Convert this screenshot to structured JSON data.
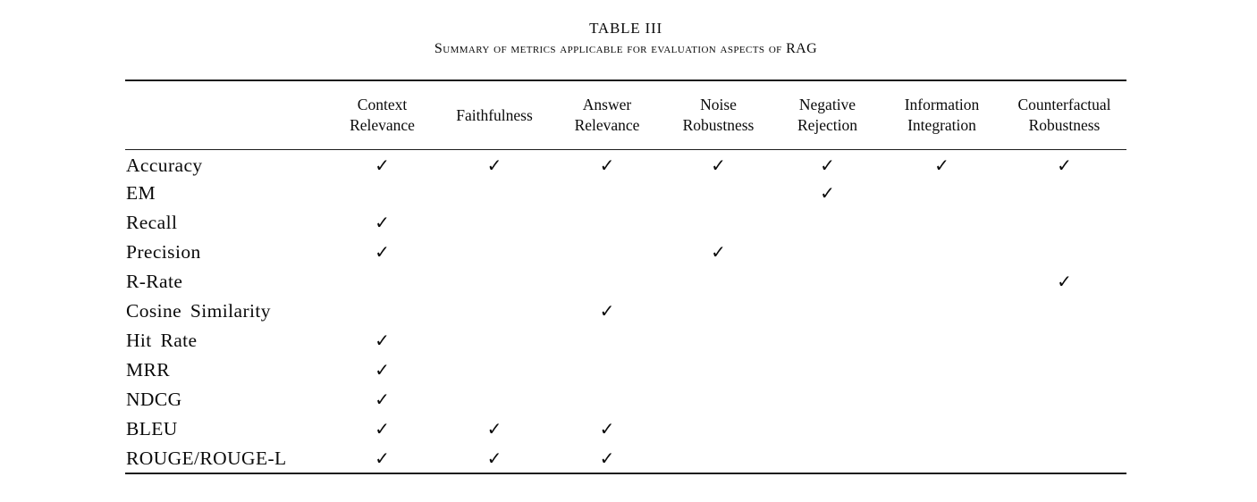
{
  "page": {
    "title": "TABLE III",
    "subtitle": "Summary of metrics applicable for evaluation aspects of RAG"
  },
  "table": {
    "check_glyph": "✓",
    "columns": [
      "Context Relevance",
      "Faithfulness",
      "Answer Relevance",
      "Noise Robustness",
      "Negative Rejection",
      "Information Integration",
      "Counterfactual Robustness"
    ],
    "rows": [
      {
        "label": "Accuracy",
        "checks": [
          1,
          1,
          1,
          1,
          1,
          1,
          1
        ]
      },
      {
        "label": "EM",
        "checks": [
          0,
          0,
          0,
          0,
          1,
          0,
          0
        ]
      },
      {
        "label": "Recall",
        "checks": [
          1,
          0,
          0,
          0,
          0,
          0,
          0
        ]
      },
      {
        "label": "Precision",
        "checks": [
          1,
          0,
          0,
          1,
          0,
          0,
          0
        ]
      },
      {
        "label": "R-Rate",
        "checks": [
          0,
          0,
          0,
          0,
          0,
          0,
          1
        ]
      },
      {
        "label": "Cosine Similarity",
        "checks": [
          0,
          0,
          1,
          0,
          0,
          0,
          0
        ]
      },
      {
        "label": "Hit Rate",
        "checks": [
          1,
          0,
          0,
          0,
          0,
          0,
          0
        ]
      },
      {
        "label": "MRR",
        "checks": [
          1,
          0,
          0,
          0,
          0,
          0,
          0
        ]
      },
      {
        "label": "NDCG",
        "checks": [
          1,
          0,
          0,
          0,
          0,
          0,
          0
        ]
      },
      {
        "label": "BLEU",
        "checks": [
          1,
          1,
          1,
          0,
          0,
          0,
          0
        ]
      },
      {
        "label": "ROUGE/ROUGE-L",
        "checks": [
          1,
          1,
          1,
          0,
          0,
          0,
          0
        ]
      }
    ]
  }
}
